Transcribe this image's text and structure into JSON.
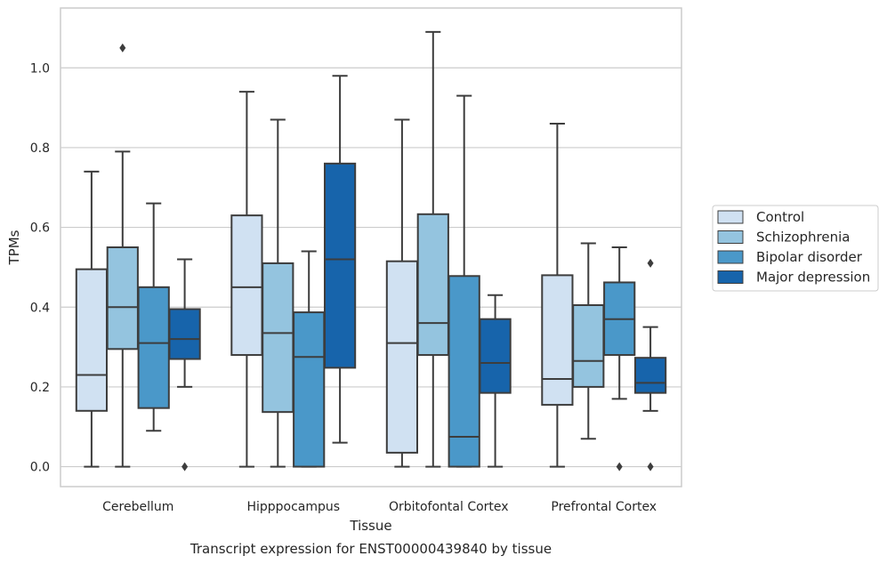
{
  "chart_data": {
    "type": "box",
    "caption": "Transcript expression for ENST00000439840 by tissue",
    "xlabel": "Tissue",
    "ylabel": "TPMs",
    "ylim": [
      -0.05,
      1.15
    ],
    "yticks": [
      0.0,
      0.2,
      0.4,
      0.6,
      0.8,
      1.0
    ],
    "ytick_labels": [
      "0.0",
      "0.2",
      "0.4",
      "0.6",
      "0.8",
      "1.0"
    ],
    "grid": "horizontal",
    "legend_position": "right",
    "categories": [
      "Cerebellum",
      "Hipppocampus",
      "Orbitofontal Cortex",
      "Prefrontal Cortex"
    ],
    "series": [
      {
        "name": "Control",
        "color": "#d0e1f2",
        "boxes": [
          {
            "whislo": 0.0,
            "q1": 0.14,
            "med": 0.23,
            "q3": 0.495,
            "whishi": 0.74,
            "fliers": []
          },
          {
            "whislo": 0.0,
            "q1": 0.28,
            "med": 0.45,
            "q3": 0.63,
            "whishi": 0.94,
            "fliers": []
          },
          {
            "whislo": 0.0,
            "q1": 0.035,
            "med": 0.31,
            "q3": 0.515,
            "whishi": 0.87,
            "fliers": []
          },
          {
            "whislo": 0.0,
            "q1": 0.155,
            "med": 0.22,
            "q3": 0.48,
            "whishi": 0.86,
            "fliers": []
          }
        ]
      },
      {
        "name": "Schizophrenia",
        "color": "#94c4df",
        "boxes": [
          {
            "whislo": 0.0,
            "q1": 0.295,
            "med": 0.4,
            "q3": 0.55,
            "whishi": 0.79,
            "fliers": [
              1.05
            ]
          },
          {
            "whislo": 0.0,
            "q1": 0.137,
            "med": 0.335,
            "q3": 0.51,
            "whishi": 0.87,
            "fliers": []
          },
          {
            "whislo": 0.0,
            "q1": 0.28,
            "med": 0.36,
            "q3": 0.633,
            "whishi": 1.09,
            "fliers": []
          },
          {
            "whislo": 0.07,
            "q1": 0.2,
            "med": 0.265,
            "q3": 0.405,
            "whishi": 0.56,
            "fliers": []
          }
        ]
      },
      {
        "name": "Bipolar disorder",
        "color": "#4a98c9",
        "boxes": [
          {
            "whislo": 0.09,
            "q1": 0.147,
            "med": 0.31,
            "q3": 0.45,
            "whishi": 0.66,
            "fliers": []
          },
          {
            "whislo": 0.0,
            "q1": 0.0,
            "med": 0.275,
            "q3": 0.387,
            "whishi": 0.54,
            "fliers": []
          },
          {
            "whislo": 0.0,
            "q1": 0.0,
            "med": 0.075,
            "q3": 0.478,
            "whishi": 0.93,
            "fliers": []
          },
          {
            "whislo": 0.17,
            "q1": 0.28,
            "med": 0.37,
            "q3": 0.462,
            "whishi": 0.55,
            "fliers": [
              0.0
            ]
          }
        ]
      },
      {
        "name": "Major depression",
        "color": "#1764ab",
        "boxes": [
          {
            "whislo": 0.2,
            "q1": 0.27,
            "med": 0.32,
            "q3": 0.395,
            "whishi": 0.52,
            "fliers": [
              0.0
            ]
          },
          {
            "whislo": 0.06,
            "q1": 0.248,
            "med": 0.52,
            "q3": 0.76,
            "whishi": 0.98,
            "fliers": []
          },
          {
            "whislo": 0.0,
            "q1": 0.185,
            "med": 0.26,
            "q3": 0.37,
            "whishi": 0.43,
            "fliers": []
          },
          {
            "whislo": 0.14,
            "q1": 0.185,
            "med": 0.21,
            "q3": 0.273,
            "whishi": 0.35,
            "fliers": [
              0.0,
              0.51
            ]
          }
        ]
      }
    ]
  }
}
